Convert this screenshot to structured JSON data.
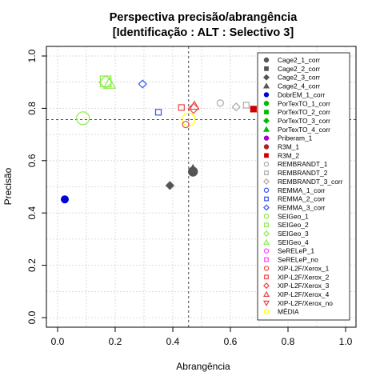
{
  "chart_data": {
    "type": "scatter",
    "title": "Perspectiva precisão/abrangência",
    "subtitle": "[Identificação : ALT : Selectivo 3]",
    "xlabel": "Abrangência",
    "ylabel": "Precisão",
    "xlim": [
      0,
      1
    ],
    "ylim": [
      0,
      1
    ],
    "xticks": [
      "0.0",
      "0.2",
      "0.4",
      "0.6",
      "0.8",
      "1.0"
    ],
    "yticks": [
      "0.0",
      "0.2",
      "0.4",
      "0.6",
      "0.8",
      "1.0"
    ],
    "grid": true,
    "legend_position": "right",
    "reference_lines": {
      "x": 0.455,
      "y": 0.757
    },
    "series": [
      {
        "name": "Cage2_1_corr",
        "shape": "circle",
        "filled": true,
        "color": "#555555",
        "x": 0.47,
        "y": 0.558,
        "size": 1.4
      },
      {
        "name": "Cage2_2_corr",
        "shape": "square",
        "filled": true,
        "color": "#555555",
        "x": 0.47,
        "y": 0.56,
        "size": 1.0
      },
      {
        "name": "Cage2_3_corr",
        "shape": "diamond",
        "filled": true,
        "color": "#555555",
        "x": 0.39,
        "y": 0.505,
        "size": 1.0
      },
      {
        "name": "Cage2_4_corr",
        "shape": "triangle",
        "filled": true,
        "color": "#555555",
        "x": 0.47,
        "y": 0.57,
        "size": 1.0
      },
      {
        "name": "DobrEM_1_corr",
        "shape": "circle",
        "filled": true,
        "color": "#0000dd",
        "x": 0.025,
        "y": 0.452,
        "size": 1.1
      },
      {
        "name": "PorTexTO_1_corr",
        "shape": "circle",
        "filled": true,
        "color": "#00bb00"
      },
      {
        "name": "PorTexTO_2_corr",
        "shape": "square",
        "filled": true,
        "color": "#00bb00"
      },
      {
        "name": "PorTexTO_3_corr",
        "shape": "diamond",
        "filled": true,
        "color": "#00bb00"
      },
      {
        "name": "PorTexTO_4_corr",
        "shape": "triangle",
        "filled": true,
        "color": "#00bb00"
      },
      {
        "name": "Priberam_1",
        "shape": "circle",
        "filled": true,
        "color": "#aa00cc"
      },
      {
        "name": "R3M_1",
        "shape": "circle",
        "filled": true,
        "color": "#aa2222"
      },
      {
        "name": "R3M_2",
        "shape": "square",
        "filled": true,
        "color": "#cc0000",
        "x": 0.68,
        "y": 0.797,
        "size": 1.0
      },
      {
        "name": "REMBRANDT_1",
        "shape": "circle",
        "filled": false,
        "color": "#aaaaaa",
        "x": 0.565,
        "y": 0.82,
        "size": 1.0
      },
      {
        "name": "REMBRANDT_2",
        "shape": "square",
        "filled": false,
        "color": "#aaaaaa",
        "x": 0.655,
        "y": 0.812,
        "size": 1.0
      },
      {
        "name": "REMBRANDT_3_corr",
        "shape": "diamond",
        "filled": false,
        "color": "#aaaaaa",
        "x": 0.62,
        "y": 0.805,
        "size": 1.0
      },
      {
        "name": "REMMA_1_corr",
        "shape": "circle",
        "filled": false,
        "color": "#3355ee"
      },
      {
        "name": "REMMA_2_corr",
        "shape": "square",
        "filled": false,
        "color": "#3355ee",
        "x": 0.35,
        "y": 0.785,
        "size": 1.0
      },
      {
        "name": "REMMA_3_corr",
        "shape": "diamond",
        "filled": false,
        "color": "#3355ee",
        "x": 0.295,
        "y": 0.893,
        "size": 1.0
      },
      {
        "name": "SEIGeo_1",
        "shape": "circle",
        "filled": false,
        "color": "#88ee44",
        "x": 0.088,
        "y": 0.762,
        "size": 2.0
      },
      {
        "name": "SEIGeo_2",
        "shape": "square",
        "filled": false,
        "color": "#88ee44",
        "x": 0.167,
        "y": 0.903,
        "size": 1.9
      },
      {
        "name": "SEIGeo_3",
        "shape": "diamond",
        "filled": false,
        "color": "#88ee44",
        "x": 0.167,
        "y": 0.9,
        "size": 1.7
      },
      {
        "name": "SEIGeo_4",
        "shape": "triangle",
        "filled": false,
        "color": "#88ee44",
        "x": 0.18,
        "y": 0.895,
        "size": 1.6
      },
      {
        "name": "SeRELeP_1",
        "shape": "circle",
        "filled": false,
        "color": "#ff44ff"
      },
      {
        "name": "SeRELeP_no",
        "shape": "square",
        "filled": false,
        "color": "#ff44ff"
      },
      {
        "name": "XIP-L2F/Xerox_1",
        "shape": "circle",
        "filled": false,
        "color": "#ee4444",
        "x": 0.445,
        "y": 0.738,
        "size": 1.0
      },
      {
        "name": "XIP-L2F/Xerox_2",
        "shape": "square",
        "filled": false,
        "color": "#ee4444",
        "x": 0.43,
        "y": 0.803,
        "size": 1.0
      },
      {
        "name": "XIP-L2F/Xerox_3",
        "shape": "diamond",
        "filled": false,
        "color": "#ee4444",
        "x": 0.472,
        "y": 0.8,
        "size": 1.3
      },
      {
        "name": "XIP-L2F/Xerox_4",
        "shape": "triangle",
        "filled": false,
        "color": "#ee4444",
        "x": 0.475,
        "y": 0.81,
        "size": 1.2
      },
      {
        "name": "XIP-L2F/Xerox_no",
        "shape": "triangle-down",
        "filled": false,
        "color": "#ee4444"
      },
      {
        "name": "MÉDIA",
        "shape": "circle",
        "filled": false,
        "color": "#ffff00",
        "x": 0.455,
        "y": 0.757,
        "size": 2.0
      }
    ]
  }
}
